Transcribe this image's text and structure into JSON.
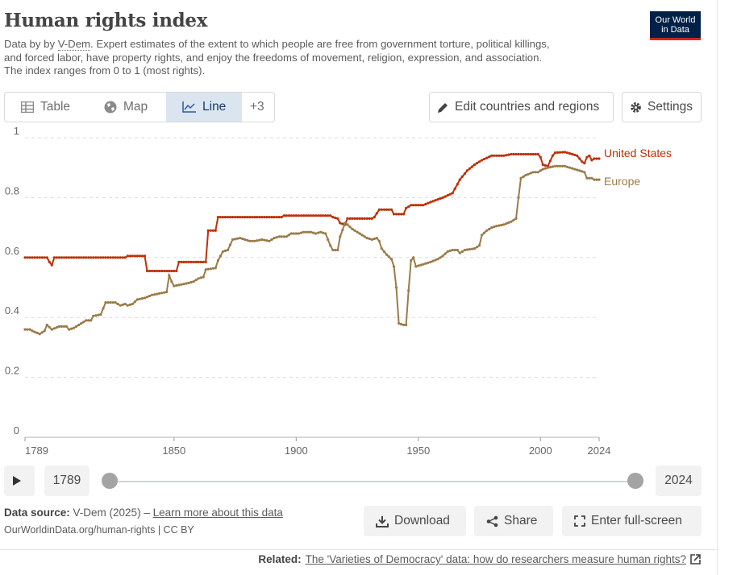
{
  "header": {
    "title": "Human rights index",
    "subtitle_prefix": "Data by by ",
    "subtitle_source": "V-Dem",
    "subtitle_line1_rest": ". Expert estimates of the extent to which people are free from government torture, political killings,",
    "subtitle_line2": "and forced labor, have property rights, and enjoy the freedoms of movement, religion, expression, and association.",
    "subtitle_line3": "The index ranges from 0 to 1 (most rights).",
    "logo_line1": "Our World",
    "logo_line2": "in Data"
  },
  "tabs": [
    {
      "label": "Table",
      "icon": "table-icon"
    },
    {
      "label": "Map",
      "icon": "globe-icon"
    },
    {
      "label": "Line",
      "icon": "line-chart-icon",
      "active": true
    },
    {
      "label": "+3",
      "icon": ""
    }
  ],
  "toolbar": {
    "edit_label": "Edit countries and regions",
    "settings_label": "Settings"
  },
  "timeline": {
    "start": "1789",
    "end": "2024",
    "start_fraction": 0,
    "end_fraction": 1
  },
  "footer": {
    "source_label": "Data source:",
    "source_text": " V-Dem (2025) – ",
    "learn_more": "Learn more about this data",
    "url_line": "OurWorldinData.org/human-rights | CC BY",
    "download_label": "Download",
    "share_label": "Share",
    "fullscreen_label": "Enter full-screen",
    "related_label": "Related:",
    "related_link": "The 'Varieties of Democracy' data: how do researchers measure human rights?"
  },
  "colors": {
    "united_states": "#be3006",
    "europe": "#9a7b4a",
    "active_tab_bg": "#dbe5f0",
    "logo_bg": "#002147"
  },
  "chart_data": {
    "type": "line",
    "title": "Human rights index",
    "xlabel": "",
    "ylabel": "",
    "xlim": [
      1789,
      2024
    ],
    "ylim": [
      0,
      1
    ],
    "x_ticks": [
      "1789",
      "1850",
      "1900",
      "1950",
      "2000",
      "2024"
    ],
    "y_ticks": [
      "0",
      "0.2",
      "0.4",
      "0.6",
      "0.8",
      "1"
    ],
    "grid": true,
    "legend": "line-end labels",
    "series": [
      {
        "name": "United States",
        "points": [
          [
            1789,
            0.6
          ],
          [
            1798,
            0.6
          ],
          [
            1799,
            0.585
          ],
          [
            1800,
            0.575
          ],
          [
            1801,
            0.6
          ],
          [
            1830,
            0.6
          ],
          [
            1831,
            0.605
          ],
          [
            1838,
            0.605
          ],
          [
            1839,
            0.555
          ],
          [
            1851,
            0.555
          ],
          [
            1852,
            0.585
          ],
          [
            1863,
            0.585
          ],
          [
            1864,
            0.69
          ],
          [
            1867,
            0.69
          ],
          [
            1868,
            0.735
          ],
          [
            1894,
            0.735
          ],
          [
            1895,
            0.74
          ],
          [
            1910,
            0.74
          ],
          [
            1914,
            0.74
          ],
          [
            1915,
            0.735
          ],
          [
            1917,
            0.73
          ],
          [
            1918,
            0.715
          ],
          [
            1920,
            0.71
          ],
          [
            1921,
            0.73
          ],
          [
            1931,
            0.73
          ],
          [
            1932,
            0.735
          ],
          [
            1934,
            0.76
          ],
          [
            1939,
            0.76
          ],
          [
            1940,
            0.745
          ],
          [
            1944,
            0.745
          ],
          [
            1945,
            0.765
          ],
          [
            1947,
            0.775
          ],
          [
            1952,
            0.775
          ],
          [
            1955,
            0.785
          ],
          [
            1960,
            0.8
          ],
          [
            1964,
            0.815
          ],
          [
            1967,
            0.86
          ],
          [
            1970,
            0.89
          ],
          [
            1973,
            0.91
          ],
          [
            1976,
            0.925
          ],
          [
            1980,
            0.94
          ],
          [
            1985,
            0.94
          ],
          [
            1988,
            0.945
          ],
          [
            1995,
            0.945
          ],
          [
            1999,
            0.945
          ],
          [
            2000,
            0.935
          ],
          [
            2001,
            0.91
          ],
          [
            2003,
            0.905
          ],
          [
            2005,
            0.94
          ],
          [
            2006,
            0.95
          ],
          [
            2010,
            0.952
          ],
          [
            2013,
            0.945
          ],
          [
            2015,
            0.94
          ],
          [
            2017,
            0.92
          ],
          [
            2018,
            0.915
          ],
          [
            2019,
            0.935
          ],
          [
            2020,
            0.94
          ],
          [
            2021,
            0.925
          ],
          [
            2022,
            0.93
          ],
          [
            2024,
            0.93
          ]
        ]
      },
      {
        "name": "Europe",
        "points": [
          [
            1789,
            0.36
          ],
          [
            1791,
            0.36
          ],
          [
            1792,
            0.355
          ],
          [
            1795,
            0.345
          ],
          [
            1797,
            0.355
          ],
          [
            1798,
            0.375
          ],
          [
            1800,
            0.36
          ],
          [
            1803,
            0.37
          ],
          [
            1806,
            0.37
          ],
          [
            1807,
            0.36
          ],
          [
            1809,
            0.365
          ],
          [
            1811,
            0.375
          ],
          [
            1814,
            0.39
          ],
          [
            1816,
            0.39
          ],
          [
            1817,
            0.405
          ],
          [
            1820,
            0.41
          ],
          [
            1822,
            0.45
          ],
          [
            1826,
            0.45
          ],
          [
            1828,
            0.44
          ],
          [
            1830,
            0.445
          ],
          [
            1831,
            0.44
          ],
          [
            1833,
            0.445
          ],
          [
            1835,
            0.46
          ],
          [
            1838,
            0.465
          ],
          [
            1841,
            0.475
          ],
          [
            1844,
            0.48
          ],
          [
            1847,
            0.485
          ],
          [
            1848,
            0.54
          ],
          [
            1849,
            0.52
          ],
          [
            1850,
            0.505
          ],
          [
            1853,
            0.51
          ],
          [
            1856,
            0.515
          ],
          [
            1858,
            0.52
          ],
          [
            1860,
            0.53
          ],
          [
            1862,
            0.535
          ],
          [
            1863,
            0.56
          ],
          [
            1867,
            0.565
          ],
          [
            1868,
            0.59
          ],
          [
            1870,
            0.62
          ],
          [
            1872,
            0.625
          ],
          [
            1874,
            0.66
          ],
          [
            1877,
            0.665
          ],
          [
            1879,
            0.66
          ],
          [
            1881,
            0.655
          ],
          [
            1883,
            0.655
          ],
          [
            1886,
            0.66
          ],
          [
            1889,
            0.655
          ],
          [
            1891,
            0.665
          ],
          [
            1893,
            0.67
          ],
          [
            1896,
            0.67
          ],
          [
            1898,
            0.68
          ],
          [
            1901,
            0.68
          ],
          [
            1903,
            0.685
          ],
          [
            1906,
            0.685
          ],
          [
            1908,
            0.68
          ],
          [
            1910,
            0.685
          ],
          [
            1912,
            0.68
          ],
          [
            1914,
            0.64
          ],
          [
            1915,
            0.625
          ],
          [
            1917,
            0.625
          ],
          [
            1918,
            0.67
          ],
          [
            1920,
            0.715
          ],
          [
            1921,
            0.71
          ],
          [
            1923,
            0.695
          ],
          [
            1925,
            0.685
          ],
          [
            1927,
            0.675
          ],
          [
            1929,
            0.665
          ],
          [
            1931,
            0.66
          ],
          [
            1933,
            0.665
          ],
          [
            1934,
            0.655
          ],
          [
            1935,
            0.63
          ],
          [
            1937,
            0.61
          ],
          [
            1939,
            0.595
          ],
          [
            1940,
            0.57
          ],
          [
            1941,
            0.5
          ],
          [
            1942,
            0.38
          ],
          [
            1944,
            0.375
          ],
          [
            1945,
            0.375
          ],
          [
            1946,
            0.49
          ],
          [
            1947,
            0.59
          ],
          [
            1948,
            0.6
          ],
          [
            1949,
            0.57
          ],
          [
            1951,
            0.575
          ],
          [
            1953,
            0.58
          ],
          [
            1955,
            0.585
          ],
          [
            1958,
            0.595
          ],
          [
            1960,
            0.605
          ],
          [
            1962,
            0.62
          ],
          [
            1964,
            0.625
          ],
          [
            1966,
            0.625
          ],
          [
            1967,
            0.615
          ],
          [
            1969,
            0.625
          ],
          [
            1973,
            0.63
          ],
          [
            1975,
            0.64
          ],
          [
            1976,
            0.675
          ],
          [
            1978,
            0.69
          ],
          [
            1980,
            0.7
          ],
          [
            1982,
            0.705
          ],
          [
            1985,
            0.71
          ],
          [
            1988,
            0.72
          ],
          [
            1990,
            0.73
          ],
          [
            1991,
            0.8
          ],
          [
            1992,
            0.865
          ],
          [
            1994,
            0.875
          ],
          [
            1997,
            0.885
          ],
          [
            1999,
            0.885
          ],
          [
            2001,
            0.895
          ],
          [
            2003,
            0.9
          ],
          [
            2006,
            0.905
          ],
          [
            2008,
            0.905
          ],
          [
            2010,
            0.905
          ],
          [
            2012,
            0.9
          ],
          [
            2014,
            0.895
          ],
          [
            2016,
            0.89
          ],
          [
            2018,
            0.885
          ],
          [
            2019,
            0.865
          ],
          [
            2021,
            0.865
          ],
          [
            2022,
            0.86
          ],
          [
            2024,
            0.86
          ]
        ]
      }
    ]
  }
}
